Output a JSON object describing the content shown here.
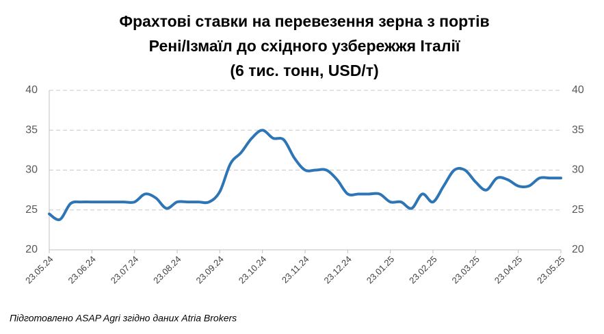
{
  "chart_data": {
    "type": "line",
    "title": [
      "Фрахтові ставки на перевезення зерна з портів",
      "Рені/Ізмаїл до східного узбережжя Італії",
      "(6 тис. тонн, USD/т)"
    ],
    "categories": [
      "23.05.24",
      null,
      null,
      null,
      "23.06.24",
      null,
      null,
      null,
      "23.07.24",
      null,
      null,
      null,
      "23.08.24",
      null,
      null,
      null,
      "23.09.24",
      null,
      null,
      null,
      "23.10.24",
      null,
      null,
      null,
      "23.11.24",
      null,
      null,
      null,
      "23.12.24",
      null,
      null,
      null,
      "23.01.25",
      null,
      null,
      null,
      "23.02.25",
      null,
      null,
      null,
      "23.03.25",
      null,
      null,
      null,
      "23.04.25",
      null,
      null,
      null,
      "23.05.25"
    ],
    "values": [
      24.5,
      23.8,
      25.8,
      26,
      26,
      26,
      26,
      26,
      26,
      27,
      26.5,
      25.2,
      26,
      26,
      26,
      26,
      27.3,
      30.8,
      32.2,
      34,
      35,
      34,
      33.8,
      31.5,
      30,
      30,
      30,
      28.8,
      27,
      27,
      27,
      27,
      26,
      26,
      25.2,
      27,
      26,
      28,
      30,
      30,
      28.5,
      27.5,
      29,
      28.8,
      28,
      28,
      29,
      29,
      29
    ],
    "color": "#2e75b6",
    "ylim": [
      20,
      40
    ],
    "yticks": [
      20,
      25,
      30,
      35,
      40
    ],
    "y2lim": [
      20,
      40
    ],
    "y2ticks": [
      20,
      25,
      30,
      35,
      40
    ],
    "grid": true,
    "source": "Підготовлено ASAP Agri згідно даних Atria Brokers"
  }
}
